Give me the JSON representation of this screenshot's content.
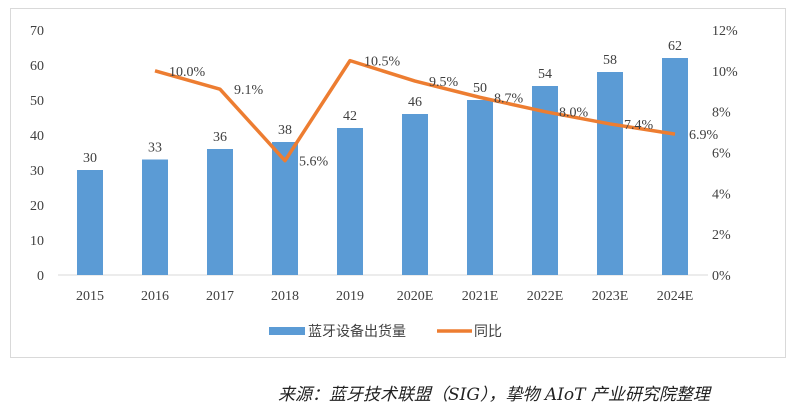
{
  "chart_data": {
    "type": "bar+line",
    "categories": [
      "2015",
      "2016",
      "2017",
      "2018",
      "2019",
      "2020E",
      "2021E",
      "2022E",
      "2023E",
      "2024E"
    ],
    "series": [
      {
        "name": "蓝牙设备出货量",
        "type": "bar",
        "axis": "left",
        "color": "#5B9BD5",
        "values": [
          30,
          33,
          36,
          38,
          42,
          46,
          50,
          54,
          58,
          62
        ]
      },
      {
        "name": "同比",
        "type": "line",
        "axis": "right",
        "color": "#ED7D31",
        "values": [
          null,
          10.0,
          9.1,
          5.6,
          10.5,
          9.5,
          8.7,
          8.0,
          7.4,
          6.9
        ]
      }
    ],
    "y_left": {
      "min": 0,
      "max": 70,
      "ticks": [
        0,
        10,
        20,
        30,
        40,
        50,
        60,
        70
      ]
    },
    "y_right": {
      "min": 0,
      "max": 12,
      "ticks": [
        "0%",
        "2%",
        "4%",
        "6%",
        "8%",
        "10%",
        "12%"
      ]
    },
    "grid": false,
    "legend_position": "bottom"
  },
  "footer": "来源：蓝牙技术联盟（SIG），挚物 AIoT 产业研究院整理"
}
